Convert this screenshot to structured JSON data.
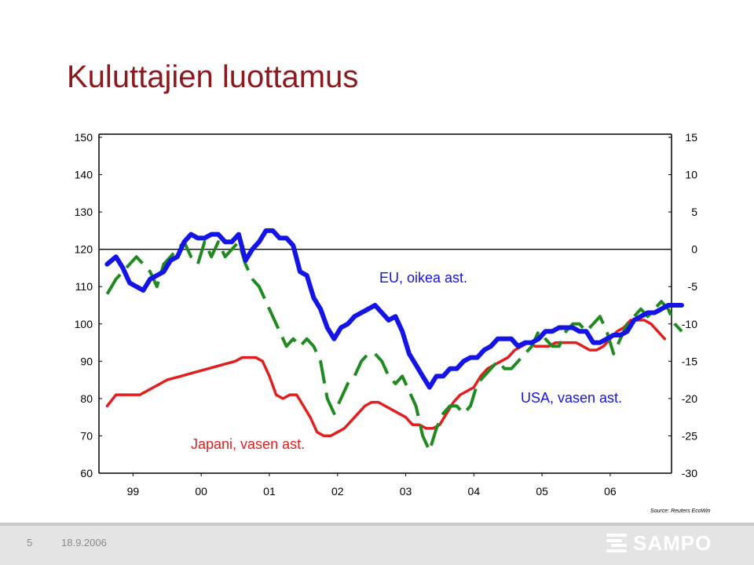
{
  "title": "Kuluttajien luottamus",
  "chart_data": {
    "type": "line",
    "left_axis": {
      "ylim": [
        60,
        150
      ],
      "ticks": [
        "150",
        "140",
        "130",
        "120",
        "110",
        "100",
        "90",
        "80",
        "70",
        "60"
      ]
    },
    "right_axis": {
      "ylim": [
        -30,
        15
      ],
      "ticks": [
        "15",
        "10",
        "5",
        "0",
        "-5",
        "-10",
        "-15",
        "-20",
        "-25",
        "-30"
      ]
    },
    "x_axis": {
      "range": [
        1998.5,
        2006.9
      ],
      "ticks": [
        {
          "label": "99",
          "x": 1999.0
        },
        {
          "label": "00",
          "x": 2000.0
        },
        {
          "label": "01",
          "x": 2001.0
        },
        {
          "label": "02",
          "x": 2002.0
        },
        {
          "label": "03",
          "x": 2003.0
        },
        {
          "label": "04",
          "x": 2004.0
        },
        {
          "label": "05",
          "x": 2005.0
        },
        {
          "label": "06",
          "x": 2006.0
        }
      ]
    },
    "annotations": {
      "eu": "EU, oikea ast.",
      "usa": "USA, vasen ast.",
      "japan": "Japani, vasen ast."
    },
    "series": [
      {
        "key": "usa",
        "axis": "left",
        "color": "#1414e6",
        "style": "solid",
        "points": [
          [
            1998.62,
            116
          ],
          [
            1998.75,
            118
          ],
          [
            1998.85,
            115
          ],
          [
            1998.95,
            111
          ],
          [
            1999.05,
            110
          ],
          [
            1999.15,
            109
          ],
          [
            1999.25,
            112
          ],
          [
            1999.35,
            113
          ],
          [
            1999.45,
            114
          ],
          [
            1999.55,
            117
          ],
          [
            1999.65,
            118
          ],
          [
            1999.75,
            122
          ],
          [
            1999.85,
            124
          ],
          [
            1999.95,
            123
          ],
          [
            2000.05,
            123
          ],
          [
            2000.15,
            124
          ],
          [
            2000.25,
            124
          ],
          [
            2000.35,
            122
          ],
          [
            2000.45,
            122
          ],
          [
            2000.55,
            124
          ],
          [
            2000.65,
            117
          ],
          [
            2000.75,
            120
          ],
          [
            2000.85,
            122
          ],
          [
            2000.95,
            125
          ],
          [
            2001.05,
            125
          ],
          [
            2001.15,
            123
          ],
          [
            2001.25,
            123
          ],
          [
            2001.35,
            121
          ],
          [
            2001.45,
            114
          ],
          [
            2001.55,
            113
          ],
          [
            2001.65,
            107
          ],
          [
            2001.75,
            104
          ],
          [
            2001.85,
            99
          ],
          [
            2001.95,
            96
          ],
          [
            2002.05,
            99
          ],
          [
            2002.15,
            100
          ],
          [
            2002.25,
            102
          ],
          [
            2002.35,
            103
          ],
          [
            2002.45,
            104
          ],
          [
            2002.55,
            105
          ],
          [
            2002.65,
            103
          ],
          [
            2002.75,
            101
          ],
          [
            2002.85,
            102
          ],
          [
            2002.95,
            98
          ],
          [
            2003.05,
            92
          ],
          [
            2003.15,
            89
          ],
          [
            2003.25,
            86
          ],
          [
            2003.35,
            83
          ],
          [
            2003.45,
            86
          ],
          [
            2003.55,
            86
          ],
          [
            2003.65,
            88
          ],
          [
            2003.75,
            88
          ],
          [
            2003.85,
            90
          ],
          [
            2003.95,
            91
          ],
          [
            2004.05,
            91
          ],
          [
            2004.15,
            93
          ],
          [
            2004.25,
            94
          ],
          [
            2004.35,
            96
          ],
          [
            2004.45,
            96
          ],
          [
            2004.55,
            96
          ],
          [
            2004.65,
            94
          ],
          [
            2004.75,
            95
          ],
          [
            2004.85,
            95
          ],
          [
            2004.95,
            96
          ],
          [
            2005.05,
            98
          ],
          [
            2005.15,
            98
          ],
          [
            2005.25,
            99
          ],
          [
            2005.35,
            99
          ],
          [
            2005.45,
            99
          ],
          [
            2005.55,
            98
          ],
          [
            2005.65,
            98
          ],
          [
            2005.75,
            95
          ],
          [
            2005.85,
            95
          ],
          [
            2005.95,
            96
          ],
          [
            2006.05,
            97
          ],
          [
            2006.15,
            97
          ],
          [
            2006.25,
            98
          ],
          [
            2006.35,
            101
          ],
          [
            2006.45,
            102
          ],
          [
            2006.55,
            103
          ],
          [
            2006.65,
            103
          ],
          [
            2006.75,
            104
          ],
          [
            2006.85,
            105
          ],
          [
            2006.95,
            105
          ],
          [
            2007.05,
            105
          ]
        ]
      },
      {
        "key": "eu",
        "axis": "right",
        "color": "#1f8a1f",
        "style": "dashed",
        "points": [
          [
            1998.62,
            -6
          ],
          [
            1998.75,
            -4
          ],
          [
            1998.85,
            -3
          ],
          [
            1998.95,
            -2
          ],
          [
            1999.05,
            -1
          ],
          [
            1999.15,
            -2
          ],
          [
            1999.25,
            -3
          ],
          [
            1999.35,
            -5
          ],
          [
            1999.45,
            -2
          ],
          [
            1999.55,
            -1
          ],
          [
            1999.65,
            0
          ],
          [
            1999.75,
            1
          ],
          [
            1999.85,
            -1
          ],
          [
            1999.95,
            -2
          ],
          [
            2000.05,
            1
          ],
          [
            2000.15,
            -1
          ],
          [
            2000.25,
            1
          ],
          [
            2000.35,
            -1
          ],
          [
            2000.45,
            0
          ],
          [
            2000.55,
            1
          ],
          [
            2000.65,
            -2
          ],
          [
            2000.75,
            -4
          ],
          [
            2000.85,
            -5
          ],
          [
            2000.95,
            -7
          ],
          [
            2001.05,
            -9
          ],
          [
            2001.15,
            -11
          ],
          [
            2001.25,
            -13
          ],
          [
            2001.35,
            -12
          ],
          [
            2001.45,
            -13
          ],
          [
            2001.55,
            -12
          ],
          [
            2001.65,
            -13
          ],
          [
            2001.75,
            -15
          ],
          [
            2001.85,
            -20
          ],
          [
            2001.95,
            -22
          ],
          [
            2002.05,
            -20
          ],
          [
            2002.15,
            -18
          ],
          [
            2002.25,
            -17
          ],
          [
            2002.35,
            -15
          ],
          [
            2002.45,
            -14
          ],
          [
            2002.55,
            -14
          ],
          [
            2002.65,
            -15
          ],
          [
            2002.75,
            -17
          ],
          [
            2002.85,
            -18
          ],
          [
            2002.95,
            -17
          ],
          [
            2003.05,
            -19
          ],
          [
            2003.15,
            -21
          ],
          [
            2003.25,
            -25
          ],
          [
            2003.35,
            -27
          ],
          [
            2003.45,
            -24
          ],
          [
            2003.55,
            -22
          ],
          [
            2003.65,
            -21
          ],
          [
            2003.75,
            -21
          ],
          [
            2003.85,
            -22
          ],
          [
            2003.95,
            -21
          ],
          [
            2004.05,
            -18
          ],
          [
            2004.15,
            -17
          ],
          [
            2004.25,
            -16
          ],
          [
            2004.35,
            -15
          ],
          [
            2004.45,
            -16
          ],
          [
            2004.55,
            -16
          ],
          [
            2004.65,
            -15
          ],
          [
            2004.75,
            -14
          ],
          [
            2004.85,
            -13
          ],
          [
            2004.95,
            -11
          ],
          [
            2005.05,
            -12
          ],
          [
            2005.15,
            -13
          ],
          [
            2005.25,
            -13
          ],
          [
            2005.35,
            -11
          ],
          [
            2005.45,
            -10
          ],
          [
            2005.55,
            -10
          ],
          [
            2005.65,
            -11
          ],
          [
            2005.75,
            -10
          ],
          [
            2005.85,
            -9
          ],
          [
            2005.95,
            -11
          ],
          [
            2006.05,
            -14
          ],
          [
            2006.15,
            -12
          ],
          [
            2006.25,
            -10
          ],
          [
            2006.35,
            -9
          ],
          [
            2006.45,
            -8
          ],
          [
            2006.55,
            -9
          ],
          [
            2006.65,
            -8
          ],
          [
            2006.75,
            -7
          ],
          [
            2006.85,
            -8
          ],
          [
            2006.95,
            -10
          ],
          [
            2007.05,
            -11
          ]
        ]
      },
      {
        "key": "japan",
        "axis": "left",
        "color": "#e11f1f",
        "style": "solid",
        "points": [
          [
            1998.62,
            78
          ],
          [
            1998.75,
            81
          ],
          [
            1998.95,
            81
          ],
          [
            1999.1,
            81
          ],
          [
            1999.3,
            83
          ],
          [
            1999.5,
            85
          ],
          [
            1999.7,
            86
          ],
          [
            1999.9,
            87
          ],
          [
            2000.1,
            88
          ],
          [
            2000.3,
            89
          ],
          [
            2000.5,
            90
          ],
          [
            2000.6,
            91
          ],
          [
            2000.7,
            91
          ],
          [
            2000.8,
            91
          ],
          [
            2000.9,
            90
          ],
          [
            2001.0,
            86
          ],
          [
            2001.1,
            81
          ],
          [
            2001.2,
            80
          ],
          [
            2001.3,
            81
          ],
          [
            2001.4,
            81
          ],
          [
            2001.5,
            78
          ],
          [
            2001.6,
            75
          ],
          [
            2001.7,
            71
          ],
          [
            2001.8,
            70
          ],
          [
            2001.9,
            70
          ],
          [
            2002.0,
            71
          ],
          [
            2002.1,
            72
          ],
          [
            2002.2,
            74
          ],
          [
            2002.3,
            76
          ],
          [
            2002.4,
            78
          ],
          [
            2002.5,
            79
          ],
          [
            2002.6,
            79
          ],
          [
            2002.7,
            78
          ],
          [
            2002.8,
            77
          ],
          [
            2002.9,
            76
          ],
          [
            2003.0,
            75
          ],
          [
            2003.1,
            73
          ],
          [
            2003.2,
            73
          ],
          [
            2003.3,
            72
          ],
          [
            2003.4,
            72
          ],
          [
            2003.5,
            73
          ],
          [
            2003.6,
            76
          ],
          [
            2003.7,
            79
          ],
          [
            2003.8,
            81
          ],
          [
            2003.9,
            82
          ],
          [
            2004.0,
            83
          ],
          [
            2004.1,
            86
          ],
          [
            2004.2,
            88
          ],
          [
            2004.3,
            89
          ],
          [
            2004.4,
            90
          ],
          [
            2004.5,
            91
          ],
          [
            2004.6,
            93
          ],
          [
            2004.7,
            94
          ],
          [
            2004.8,
            95
          ],
          [
            2004.9,
            94
          ],
          [
            2005.0,
            94
          ],
          [
            2005.1,
            94
          ],
          [
            2005.2,
            95
          ],
          [
            2005.3,
            95
          ],
          [
            2005.4,
            95
          ],
          [
            2005.5,
            95
          ],
          [
            2005.6,
            94
          ],
          [
            2005.7,
            93
          ],
          [
            2005.8,
            93
          ],
          [
            2005.9,
            94
          ],
          [
            2006.0,
            96
          ],
          [
            2006.1,
            98
          ],
          [
            2006.2,
            99
          ],
          [
            2006.3,
            101
          ],
          [
            2006.4,
            101
          ],
          [
            2006.5,
            101
          ],
          [
            2006.6,
            100
          ],
          [
            2006.7,
            98
          ],
          [
            2006.8,
            96
          ]
        ]
      }
    ]
  },
  "source": "Source: Reuters EcoWin",
  "footer": {
    "page": "5",
    "date": "18.9.2006",
    "logo": "SAMPO"
  }
}
